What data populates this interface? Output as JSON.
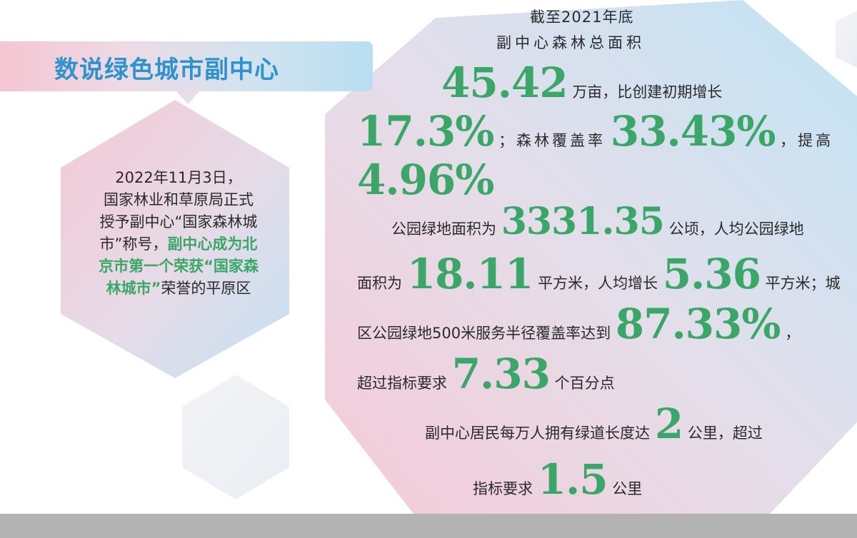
{
  "title": "数说绿色城市副中心",
  "side": {
    "line1": "2022年11月3日，",
    "line2": "国家林业和草原局正式",
    "line3": "授予副中心“国家森林城",
    "line4a": "市”称号，",
    "line4b": "副中心成为北",
    "line5": "京市第一个荣获“国家森",
    "line6a": "林城市”",
    "line6b": "荣誉的平原区"
  },
  "stats": {
    "header1": "截至2021年底",
    "header2": "副中心森林总面积",
    "forest_area": "45.42",
    "t1": "万亩，比创建初期增长",
    "growth": "17.3%",
    "t2": "；森林覆盖率",
    "coverage": "33.43%",
    "t3": "，提高",
    "coverage_up": "4.96%",
    "t4": "公园绿地面积为",
    "park_area": "3331.35",
    "t5": "公顷，人均公园绿地",
    "t6": "面积为",
    "per_capita": "18.11",
    "t7": "平方米，人均增长",
    "per_capita_up": "5.36",
    "t8": "平方米；城",
    "t9": "区公园绿地500米服务半径覆盖率达到",
    "service_rate": "87.33%",
    "t10": "，",
    "t11": "超过指标要求",
    "exceed": "7.33",
    "t12": "个百分点",
    "t13": "副中心居民每万人拥有绿道长度达",
    "greenway": "2",
    "t14": "公里，超过",
    "t15": "指标要求",
    "target": "1.5",
    "t16": "公里"
  },
  "colors": {
    "accent_green": "#3aa768",
    "title_blue": "#2c93cd",
    "footer_gray": "#b3b3b3"
  }
}
